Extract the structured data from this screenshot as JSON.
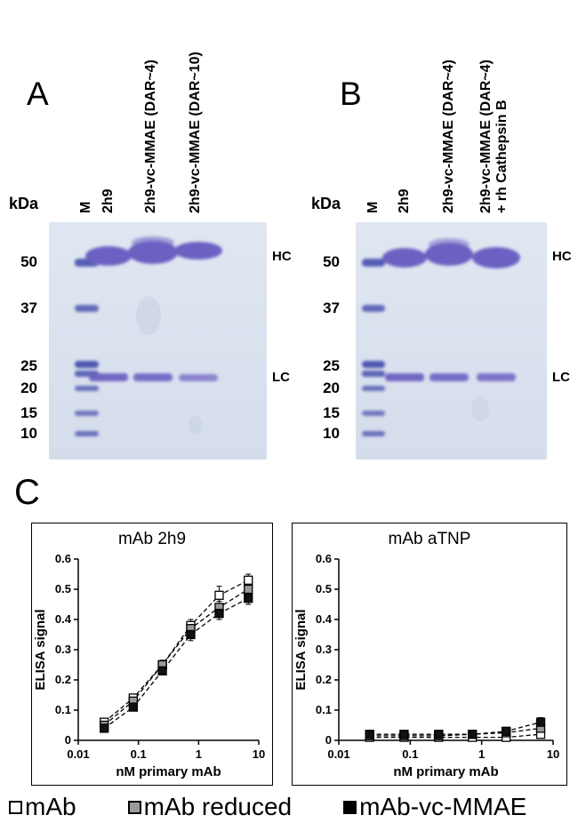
{
  "panelA": {
    "letter": "A",
    "kda": "kDa",
    "lane_labels": [
      "M",
      "2h9",
      "2h9-vc-MMAE (DAR~4)",
      "2h9-vc-MMAE (DAR~10)"
    ],
    "marker_labels": [
      "50",
      "37",
      "25",
      "20",
      "15",
      "10"
    ],
    "hc": "HC",
    "lc": "LC"
  },
  "panelB": {
    "letter": "B",
    "kda": "kDa",
    "lane_labels": [
      "M",
      "2h9",
      "2h9-vc-MMAE (DAR~4)",
      "2h9-vc-MMAE (DAR~4)",
      "+ rh Cathepsin B"
    ],
    "marker_labels": [
      "50",
      "37",
      "25",
      "20",
      "15",
      "10"
    ],
    "hc": "HC",
    "lc": "LC"
  },
  "panelC": {
    "letter": "C",
    "legend": [
      {
        "label": "mAb",
        "color": "#ffffff"
      },
      {
        "label": "mAb reduced",
        "color": "#9b9b9b"
      },
      {
        "label": "mAb-vc-MMAE",
        "color": "#000000"
      }
    ]
  },
  "gel_colors": {
    "background": "#dce3ee",
    "marker_band": "#555db4",
    "protein_band": "#6c60c2"
  },
  "chart_data": [
    {
      "type": "scatter",
      "title": "mAb 2h9",
      "xlabel": "nM primary mAb",
      "ylabel": "ELISA signal",
      "xscale": "log",
      "xlim": [
        0.01,
        10
      ],
      "ylim": [
        0,
        0.6
      ],
      "xticks": [
        0.01,
        0.1,
        1,
        10
      ],
      "xtick_labels": [
        "0.01",
        "0.1",
        "1",
        "10"
      ],
      "yticks": [
        0,
        0.1,
        0.2,
        0.3,
        0.4,
        0.5,
        0.6
      ],
      "ytick_labels": [
        "0",
        "0.1",
        "0.2",
        "0.3",
        "0.4",
        "0.5",
        "0.6"
      ],
      "x": [
        0.027,
        0.082,
        0.25,
        0.74,
        2.2,
        6.7
      ],
      "line_style": "dashed",
      "grid": false,
      "series": [
        {
          "name": "mAb",
          "marker_fill": "#ffffff",
          "values": [
            0.06,
            0.14,
            0.25,
            0.38,
            0.48,
            0.53
          ],
          "yerr": [
            0.01,
            0.01,
            0.015,
            0.02,
            0.03,
            0.02
          ]
        },
        {
          "name": "mAb reduced",
          "marker_fill": "#9b9b9b",
          "values": [
            0.05,
            0.13,
            0.25,
            0.37,
            0.44,
            0.5
          ],
          "yerr": [
            0.01,
            0.01,
            0.015,
            0.015,
            0.02,
            0.02
          ]
        },
        {
          "name": "mAb-vc-MMAE",
          "marker_fill": "#111111",
          "values": [
            0.04,
            0.11,
            0.23,
            0.35,
            0.42,
            0.47
          ],
          "yerr": [
            0.01,
            0.01,
            0.01,
            0.02,
            0.02,
            0.02
          ]
        }
      ]
    },
    {
      "type": "scatter",
      "title": "mAb aTNP",
      "xlabel": "nM primary mAb",
      "ylabel": "ELISA signal",
      "xscale": "log",
      "xlim": [
        0.01,
        10
      ],
      "ylim": [
        0,
        0.6
      ],
      "xticks": [
        0.01,
        0.1,
        1,
        10
      ],
      "xtick_labels": [
        "0.01",
        "0.1",
        "1",
        "10"
      ],
      "yticks": [
        0,
        0.1,
        0.2,
        0.3,
        0.4,
        0.5,
        0.6
      ],
      "ytick_labels": [
        "0",
        "0.1",
        "0.2",
        "0.3",
        "0.4",
        "0.5",
        "0.6"
      ],
      "x": [
        0.027,
        0.082,
        0.25,
        0.74,
        2.2,
        6.7
      ],
      "line_style": "dashed",
      "grid": false,
      "series": [
        {
          "name": "mAb",
          "marker_fill": "#ffffff",
          "values": [
            0.01,
            0.01,
            0.01,
            0.01,
            0.01,
            0.02
          ],
          "yerr": [
            0,
            0,
            0,
            0,
            0,
            0.01
          ]
        },
        {
          "name": "mAb reduced",
          "marker_fill": "#9b9b9b",
          "values": [
            0.015,
            0.015,
            0.015,
            0.02,
            0.025,
            0.04
          ],
          "yerr": [
            0,
            0,
            0,
            0,
            0.01,
            0.01
          ]
        },
        {
          "name": "mAb-vc-MMAE",
          "marker_fill": "#111111",
          "values": [
            0.02,
            0.02,
            0.02,
            0.02,
            0.03,
            0.06
          ],
          "yerr": [
            0.005,
            0.005,
            0.005,
            0.005,
            0.01,
            0.015
          ]
        }
      ]
    }
  ]
}
